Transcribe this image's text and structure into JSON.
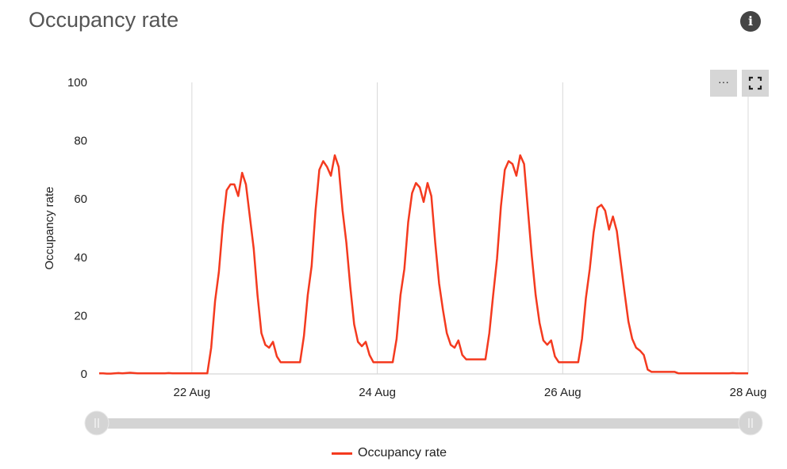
{
  "header": {
    "title": "Occupancy rate",
    "info_icon": "info-icon"
  },
  "toolbar": {
    "menu_label": "···",
    "menu_icon": "ellipsis-icon",
    "fullscreen_icon": "fullscreen-icon"
  },
  "colors": {
    "series": "#f43a1f",
    "grid": "#d8d8d8",
    "slider": "#d4d4d4"
  },
  "chart_data": {
    "type": "line",
    "title": "",
    "xlabel": "",
    "ylabel": "Occupancy rate",
    "ylim": [
      0,
      100
    ],
    "yticks": [
      "0",
      "20",
      "40",
      "60",
      "80",
      "100"
    ],
    "xlim": [
      "21 Aug 00:00",
      "28 Aug 00:00"
    ],
    "xticks": [
      "22 Aug",
      "24 Aug",
      "26 Aug",
      "28 Aug"
    ],
    "grid": "vertical at x ticks",
    "legend": "bottom",
    "x_start": "21 Aug 00:00",
    "x_interval": "1 hour",
    "series": [
      {
        "name": "Occupancy rate",
        "values": [
          0.2,
          0.2,
          0.1,
          0.1,
          0.2,
          0.3,
          0.2,
          0.3,
          0.4,
          0.3,
          0.2,
          0.2,
          0.2,
          0.2,
          0.2,
          0.2,
          0.2,
          0.2,
          0.3,
          0.2,
          0.2,
          0.2,
          0.2,
          0.2,
          0.2,
          0.2,
          0.2,
          0.2,
          0.2,
          9,
          25,
          35,
          51,
          63,
          65,
          65,
          61,
          69,
          65,
          54,
          43,
          27,
          14,
          10,
          9,
          11,
          6,
          4,
          4,
          4,
          4,
          4,
          4,
          13,
          27,
          37,
          56,
          70,
          73,
          71,
          68,
          75,
          71,
          56,
          45,
          30,
          17,
          11,
          9.5,
          11,
          6.5,
          4,
          4,
          4,
          4,
          4,
          4,
          12,
          27,
          36,
          52,
          62,
          65.5,
          64,
          59,
          65.5,
          61,
          45,
          31,
          22,
          14,
          10,
          9,
          11.5,
          6.5,
          5,
          5,
          5,
          5,
          5,
          5,
          14,
          27,
          39.5,
          57.5,
          70,
          73,
          72,
          68,
          75,
          72,
          56,
          40.5,
          27,
          17.5,
          11.5,
          10,
          11.5,
          6,
          4,
          4,
          4,
          4,
          4,
          4,
          12,
          26,
          36,
          48.5,
          57,
          58,
          56,
          49.5,
          54,
          49,
          38.5,
          28,
          18,
          12,
          9,
          8,
          6.5,
          1.5,
          0.7,
          0.7,
          0.7,
          0.7,
          0.7,
          0.7,
          0.7,
          0.2,
          0.2,
          0.2,
          0.2,
          0.2,
          0.2,
          0.2,
          0.2,
          0.2,
          0.2,
          0.2,
          0.2,
          0.2,
          0.2,
          0.3,
          0.2,
          0.2,
          0.2,
          0.2
        ]
      }
    ]
  },
  "range_slider": {
    "start": 0,
    "end": 1
  },
  "legend": {
    "label": "Occupancy rate"
  }
}
